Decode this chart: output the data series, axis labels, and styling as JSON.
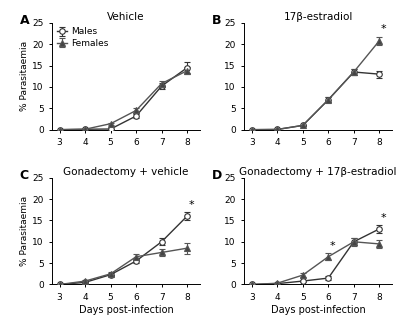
{
  "panels": [
    {
      "label": "A",
      "title": "Vehicle",
      "days": [
        3,
        4,
        5,
        6,
        7,
        8
      ],
      "males_mean": [
        0.0,
        0.1,
        0.15,
        3.2,
        10.2,
        14.5
      ],
      "males_err": [
        0.0,
        0.05,
        0.08,
        0.5,
        0.7,
        1.3
      ],
      "females_mean": [
        0.0,
        0.1,
        1.4,
        4.5,
        10.8,
        13.8
      ],
      "females_err": [
        0.0,
        0.05,
        0.2,
        0.6,
        0.5,
        0.8
      ],
      "ylim": [
        0,
        25
      ],
      "yticks": [
        0,
        5,
        10,
        15,
        20,
        25
      ],
      "show_ylabel": true,
      "show_xlabel": false,
      "show_legend": true,
      "asterisk_male": false,
      "asterisk_female": false
    },
    {
      "label": "B",
      "title": "17β-estradiol",
      "days": [
        3,
        4,
        5,
        6,
        7,
        8
      ],
      "males_mean": [
        0.0,
        0.05,
        1.0,
        7.0,
        13.5,
        13.0
      ],
      "males_err": [
        0.0,
        0.03,
        0.2,
        0.6,
        0.8,
        0.8
      ],
      "females_mean": [
        0.0,
        0.05,
        1.0,
        7.0,
        13.5,
        20.8
      ],
      "females_err": [
        0.0,
        0.03,
        0.2,
        0.6,
        0.7,
        1.0
      ],
      "ylim": [
        0,
        25
      ],
      "yticks": [
        0,
        5,
        10,
        15,
        20,
        25
      ],
      "show_ylabel": false,
      "show_xlabel": false,
      "show_legend": false,
      "asterisk_male": false,
      "asterisk_female": true,
      "asterisk_day": 8
    },
    {
      "label": "C",
      "title": "Gonadectomy + vehicle",
      "days": [
        3,
        4,
        5,
        6,
        7,
        8
      ],
      "males_mean": [
        0.0,
        0.5,
        2.3,
        5.5,
        10.0,
        16.0
      ],
      "males_err": [
        0.0,
        0.15,
        0.3,
        0.5,
        0.8,
        1.0
      ],
      "females_mean": [
        0.0,
        0.8,
        2.5,
        6.5,
        7.5,
        8.5
      ],
      "females_err": [
        0.0,
        0.2,
        0.35,
        0.7,
        0.9,
        1.3
      ],
      "ylim": [
        0,
        25
      ],
      "yticks": [
        0,
        5,
        10,
        15,
        20,
        25
      ],
      "show_ylabel": true,
      "show_xlabel": true,
      "show_legend": false,
      "asterisk_male": true,
      "asterisk_female": false,
      "asterisk_day": 8
    },
    {
      "label": "D",
      "title": "Gonadectomy + 17β-estradiol",
      "days": [
        3,
        4,
        5,
        6,
        7,
        8
      ],
      "males_mean": [
        0.0,
        0.2,
        0.8,
        1.5,
        10.0,
        13.0
      ],
      "males_err": [
        0.0,
        0.08,
        0.15,
        0.4,
        0.8,
        1.0
      ],
      "females_mean": [
        0.0,
        0.3,
        2.2,
        6.5,
        10.0,
        9.5
      ],
      "females_err": [
        0.0,
        0.1,
        0.5,
        0.8,
        0.9,
        1.0
      ],
      "ylim": [
        0,
        25
      ],
      "yticks": [
        0,
        5,
        10,
        15,
        20,
        25
      ],
      "show_ylabel": false,
      "show_xlabel": true,
      "show_legend": false,
      "asterisk_male": true,
      "asterisk_female": false,
      "asterisk_day": 8,
      "asterisk_day6": true
    }
  ],
  "male_color": "#333333",
  "female_color": "#555555",
  "male_marker": "o",
  "female_marker": "^",
  "male_markerfacecolor": "white",
  "female_markerfacecolor": "#444444",
  "linewidth": 1.0,
  "markersize": 4,
  "capsize": 2,
  "elinewidth": 0.8
}
